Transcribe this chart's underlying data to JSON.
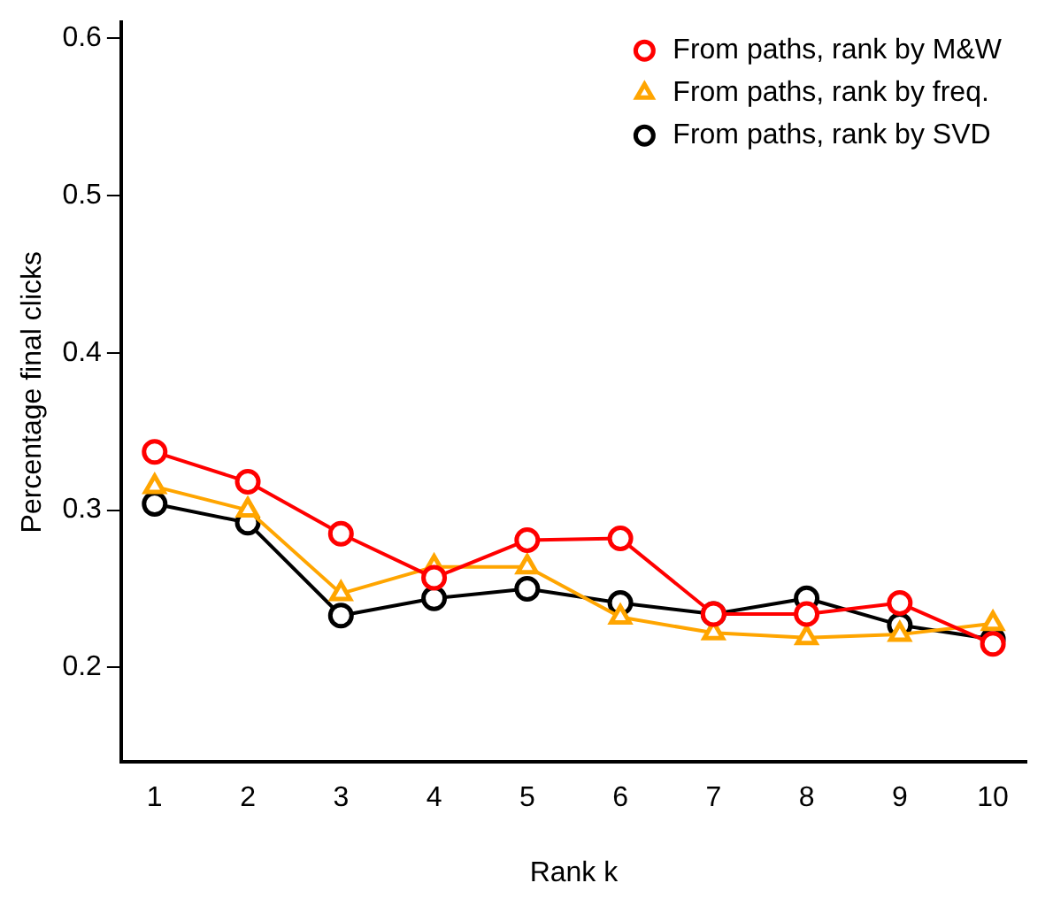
{
  "chart_data": {
    "type": "line",
    "xlabel": "Rank k",
    "ylabel": "Percentage final clicks",
    "x": [
      1,
      2,
      3,
      4,
      5,
      6,
      7,
      8,
      9,
      10
    ],
    "series": [
      {
        "name": "From paths, rank by M&W",
        "color": "#ff0000",
        "marker": "circle",
        "values": [
          0.337,
          0.318,
          0.285,
          0.257,
          0.281,
          0.282,
          0.234,
          0.234,
          0.241,
          0.215
        ]
      },
      {
        "name": "From paths, rank by freq.",
        "color": "#ffa500",
        "marker": "triangle",
        "values": [
          0.315,
          0.3,
          0.247,
          0.264,
          0.264,
          0.232,
          0.222,
          0.219,
          0.221,
          0.228
        ]
      },
      {
        "name": "From paths, rank by SVD",
        "color": "#000000",
        "marker": "circle",
        "values": [
          0.304,
          0.292,
          0.233,
          0.244,
          0.25,
          0.241,
          0.234,
          0.244,
          0.227,
          0.218
        ]
      }
    ],
    "xlim": [
      0.64,
      10.36
    ],
    "ylim": [
      0.14,
      0.61
    ],
    "xticks": [
      1,
      2,
      3,
      4,
      5,
      6,
      7,
      8,
      9,
      10
    ],
    "yticks": [
      0.2,
      0.3,
      0.4,
      0.5,
      0.6
    ],
    "grid": false,
    "legend": "top right",
    "line_style": "solid"
  }
}
